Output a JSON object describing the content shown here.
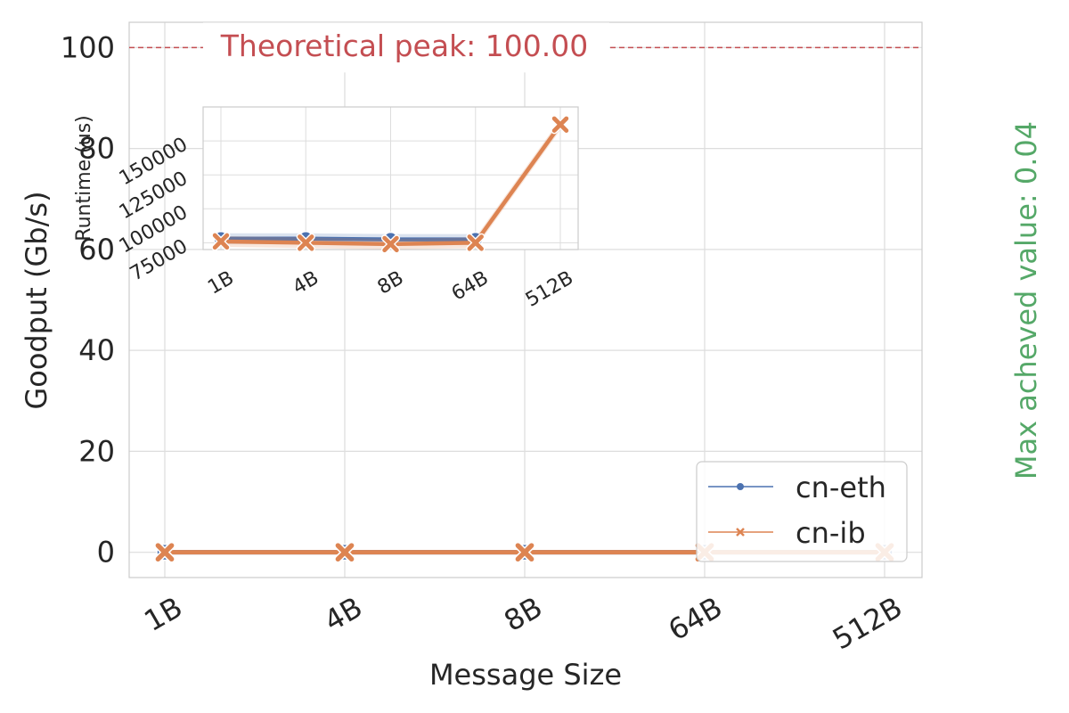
{
  "chart_data": [
    {
      "type": "line",
      "title": "",
      "xlabel": "Message Size",
      "ylabel": "Goodput (Gb/s)",
      "categories": [
        "1B",
        "4B",
        "8B",
        "64B",
        "512B"
      ],
      "ylim": [
        -5,
        105
      ],
      "yticks": [
        0,
        20,
        40,
        60,
        80,
        100
      ],
      "grid": true,
      "legend_position": "lower-right",
      "series": [
        {
          "name": "cn-eth",
          "values": [
            0.0,
            0.0,
            0.0,
            0.0,
            0.0
          ],
          "color": "#4c72b0",
          "marker": "circle"
        },
        {
          "name": "cn-ib",
          "values": [
            0.0,
            0.0,
            0.0,
            0.0,
            0.0
          ],
          "color": "#dd8452",
          "marker": "x"
        }
      ],
      "annotations": {
        "peak_line_value": 100.0,
        "peak_label": "Theoretical peak: 100.00",
        "peak_color": "#c44e52",
        "max_label": "Max acheved value: 0.04",
        "max_color": "#55a868"
      }
    },
    {
      "type": "line",
      "title": "",
      "xlabel": "",
      "ylabel": "Runtime (us)",
      "categories": [
        "1B",
        "4B",
        "8B",
        "64B",
        "512B"
      ],
      "ylim": [
        70000,
        175000
      ],
      "yticks": [
        75000,
        100000,
        125000,
        150000
      ],
      "grid": true,
      "series": [
        {
          "name": "cn-eth",
          "values": [
            78000,
            78000,
            77500,
            77500,
            null
          ],
          "color": "#4c72b0",
          "marker": "circle"
        },
        {
          "name": "cn-ib",
          "values": [
            76000,
            75000,
            74000,
            75000,
            162000
          ],
          "color": "#dd8452",
          "marker": "x"
        }
      ]
    }
  ]
}
